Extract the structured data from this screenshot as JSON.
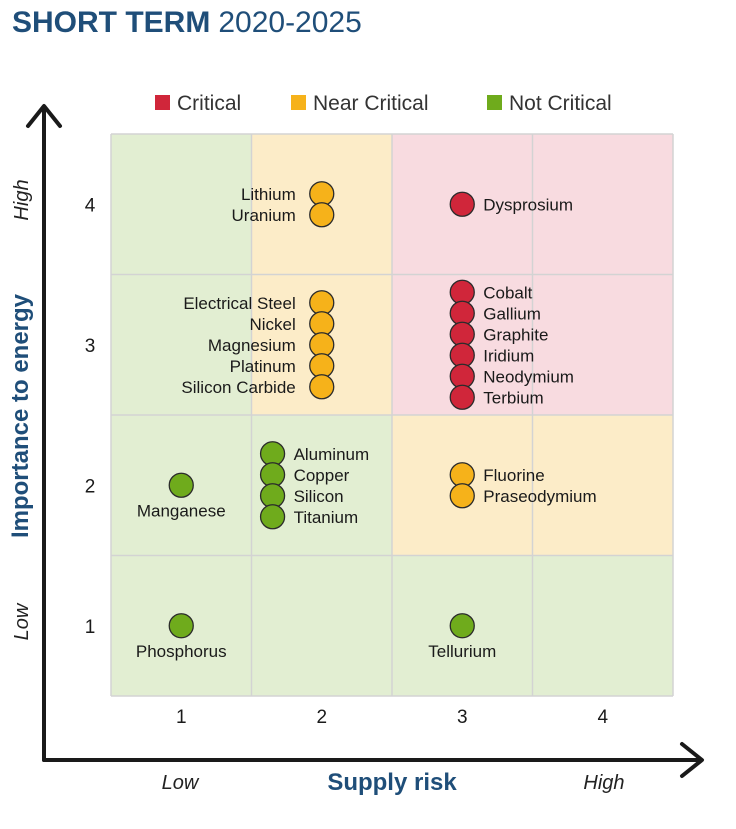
{
  "title": "SHORT TERM",
  "subtitle": "2020-2025",
  "colors": {
    "critical": "#d0263a",
    "near_critical": "#f6b21a",
    "not_critical": "#6fab1c",
    "zone_green": "#e2eed2",
    "zone_yellow": "#fcecc8",
    "zone_red": "#f8dbe0",
    "axis_title": "#1f4e79"
  },
  "chart_data": {
    "type": "scatter",
    "title": "SHORT TERM 2020-2025",
    "xlabel": "Supply risk",
    "ylabel": "Importance to energy",
    "x_ticks": [
      "1",
      "2",
      "3",
      "4"
    ],
    "y_ticks": [
      "1",
      "2",
      "3",
      "4"
    ],
    "x_low_label": "Low",
    "x_high_label": "High",
    "y_low_label": "Low",
    "y_high_label": "High",
    "xlim": [
      0.5,
      4.5
    ],
    "ylim": [
      0.5,
      4.5
    ],
    "grid": true,
    "legend_position": "top",
    "legend": [
      {
        "name": "Critical",
        "category": "critical"
      },
      {
        "name": "Near Critical",
        "category": "near_critical"
      },
      {
        "name": "Not Critical",
        "category": "not_critical"
      }
    ],
    "zones": [
      [
        "not_critical",
        "not_critical",
        "not_critical",
        "not_critical"
      ],
      [
        "not_critical",
        "not_critical",
        "near_critical",
        "near_critical"
      ],
      [
        "not_critical",
        "near_critical",
        "critical",
        "critical"
      ],
      [
        "not_critical",
        "near_critical",
        "critical",
        "critical"
      ]
    ],
    "groups": [
      {
        "x": 2,
        "y": 4,
        "category": "near_critical",
        "label_side": "left",
        "materials": [
          "Lithium",
          "Uranium"
        ]
      },
      {
        "x": 3,
        "y": 4,
        "category": "critical",
        "label_side": "right",
        "materials": [
          "Dysprosium"
        ]
      },
      {
        "x": 2,
        "y": 3,
        "category": "near_critical",
        "label_side": "left",
        "materials": [
          "Electrical Steel",
          "Nickel",
          "Magnesium",
          "Platinum",
          "Silicon Carbide"
        ]
      },
      {
        "x": 3,
        "y": 3,
        "category": "critical",
        "label_side": "right",
        "materials": [
          "Cobalt",
          "Gallium",
          "Graphite",
          "Iridium",
          "Neodymium",
          "Terbium"
        ]
      },
      {
        "x": 1,
        "y": 2,
        "category": "not_critical",
        "label_side": "below",
        "materials": [
          "Manganese"
        ]
      },
      {
        "x": 2,
        "y": 2,
        "category": "not_critical",
        "label_side": "right",
        "x_shift": -0.35,
        "materials": [
          "Aluminum",
          "Copper",
          "Silicon",
          "Titanium"
        ]
      },
      {
        "x": 3,
        "y": 2,
        "category": "near_critical",
        "label_side": "right",
        "materials": [
          "Fluorine",
          "Praseodymium"
        ]
      },
      {
        "x": 1,
        "y": 1,
        "category": "not_critical",
        "label_side": "below",
        "materials": [
          "Phosphorus"
        ]
      },
      {
        "x": 3,
        "y": 1,
        "category": "not_critical",
        "label_side": "below",
        "materials": [
          "Tellurium"
        ]
      }
    ]
  }
}
